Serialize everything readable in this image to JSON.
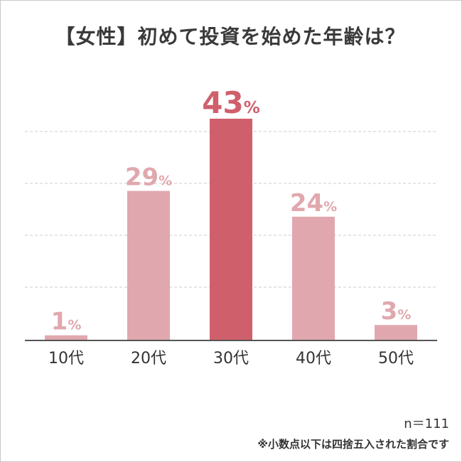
{
  "title": "【女性】初めて投資を始めた年齢は？",
  "sample_size": "n＝111",
  "footnote": "※小数点以下は四捨五入された割合です",
  "colors": {
    "highlight": "#d05f6c",
    "normal": "#e0a8ae",
    "grid": "#cccccc",
    "axis": "#555555",
    "text": "#333333"
  },
  "chart_data": {
    "type": "bar",
    "title": "【女性】初めて投資を始めた年齢は？",
    "categories": [
      "10代",
      "20代",
      "30代",
      "40代",
      "50代"
    ],
    "values": [
      1,
      29,
      43,
      24,
      3
    ],
    "value_suffix": "%",
    "highlight_index": 2,
    "ylim": [
      0,
      43
    ],
    "grid": true,
    "xlabel": "",
    "ylabel": ""
  }
}
